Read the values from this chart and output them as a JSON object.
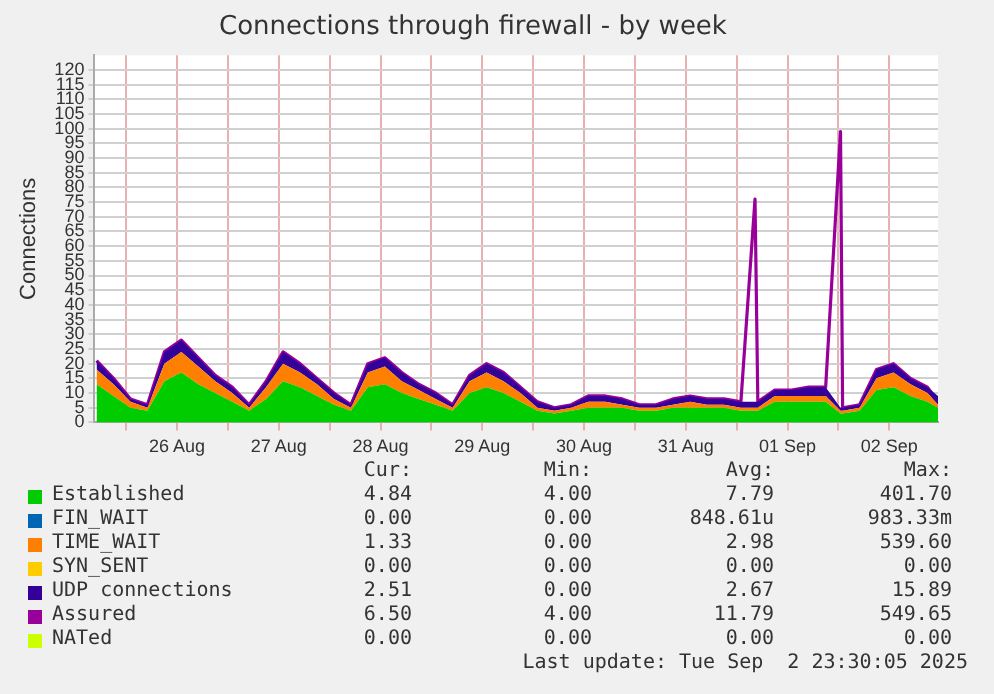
{
  "chart_data": {
    "type": "area",
    "title": "Connections through firewall - by week",
    "ylabel": "Connections",
    "stacked": true,
    "grid": true,
    "legend": "bottom",
    "marker": "none",
    "x": [
      "--08-25T17:00",
      "--08-25T21:00",
      "--08-26T01:00",
      "--08-26T05:00",
      "--08-26T09:00",
      "--08-26T13:00",
      "--08-26T17:00",
      "--08-26T21:00",
      "--08-27T01:00",
      "--08-27T05:00",
      "--08-27T09:00",
      "--08-27T13:00",
      "--08-27T17:00",
      "--08-27T21:00",
      "--08-28T01:00",
      "--08-28T05:00",
      "--08-28T09:00",
      "--08-28T13:00",
      "--08-28T17:00",
      "--08-28T21:00",
      "--08-29T01:00",
      "--08-29T05:00",
      "--08-29T09:00",
      "--08-29T13:00",
      "--08-29T17:00",
      "--08-29T21:00",
      "--08-30T01:00",
      "--08-30T05:00",
      "--08-30T09:00",
      "--08-30T13:00",
      "--08-30T17:00",
      "--08-30T21:00",
      "--08-31T01:00",
      "--08-31T05:00",
      "--08-31T09:00",
      "--08-31T13:00",
      "--08-31T17:00",
      "--08-31T21:00",
      "--09-01T01:00",
      "--09-01T04:20",
      "--09-01T05:00",
      "--09-01T09:00",
      "--09-01T13:00",
      "--09-01T17:00",
      "--09-01T21:00",
      "--09-02T00:30",
      "--09-02T01:00",
      "--09-02T05:00",
      "--09-02T09:00",
      "--09-02T13:00",
      "--09-02T17:00",
      "--09-02T21:00",
      "--09-02T23:30"
    ],
    "xlim": [
      "--08-25T16:30",
      "--09-02T23:30"
    ],
    "xticks": [
      {
        "value": "--08-26T00:00",
        "label": null
      },
      {
        "value": "--08-26T12:00",
        "label": "26 Aug"
      },
      {
        "value": "--08-27T00:00",
        "label": null
      },
      {
        "value": "--08-27T12:00",
        "label": "27 Aug"
      },
      {
        "value": "--08-28T00:00",
        "label": null
      },
      {
        "value": "--08-28T12:00",
        "label": "28 Aug"
      },
      {
        "value": "--08-29T00:00",
        "label": null
      },
      {
        "value": "--08-29T12:00",
        "label": "29 Aug"
      },
      {
        "value": "--08-30T00:00",
        "label": null
      },
      {
        "value": "--08-30T12:00",
        "label": "30 Aug"
      },
      {
        "value": "--08-31T00:00",
        "label": null
      },
      {
        "value": "--08-31T12:00",
        "label": "31 Aug"
      },
      {
        "value": "--09-01T00:00",
        "label": null
      },
      {
        "value": "--09-01T12:00",
        "label": "01 Sep"
      },
      {
        "value": "--09-02T00:00",
        "label": null
      },
      {
        "value": "--09-02T12:00",
        "label": "02 Sep"
      }
    ],
    "ylim": [
      0,
      125
    ],
    "yticks": [
      0,
      5,
      10,
      15,
      20,
      25,
      30,
      35,
      40,
      45,
      50,
      55,
      60,
      65,
      70,
      75,
      80,
      85,
      90,
      95,
      100,
      105,
      110,
      115,
      120
    ],
    "series": [
      {
        "name": "Established",
        "color": "#00cc00",
        "values": [
          13,
          9,
          5,
          4,
          14,
          17,
          13,
          10,
          7,
          4,
          8,
          14,
          12,
          9,
          6,
          4,
          12,
          13,
          10,
          8,
          6,
          4,
          10,
          12,
          10,
          7,
          4,
          3,
          4,
          5,
          5,
          5,
          4,
          4,
          5,
          5,
          5,
          5,
          4,
          4,
          4,
          7,
          7,
          7,
          7,
          3,
          3,
          4,
          11,
          12,
          9,
          7,
          5
        ]
      },
      {
        "name": "FIN_WAIT",
        "color": "#0066b3",
        "values": [
          null,
          null,
          null,
          null,
          null,
          null,
          null,
          null,
          null,
          null,
          null,
          null,
          null,
          null,
          null,
          null,
          null,
          null,
          null,
          null,
          null,
          null,
          null,
          null,
          null,
          null,
          null,
          null,
          null,
          null,
          null,
          null,
          null,
          null,
          null,
          null,
          null,
          null,
          null,
          null,
          null,
          null,
          null,
          null,
          null,
          null,
          null,
          null,
          null,
          null,
          null,
          null,
          null
        ]
      },
      {
        "name": "TIME_WAIT",
        "color": "#ff8000",
        "values": [
          5,
          4,
          2,
          1,
          6,
          7,
          6,
          4,
          3,
          1,
          4,
          6,
          5,
          4,
          2,
          1,
          5,
          6,
          4,
          3,
          2,
          1,
          4,
          5,
          4,
          3,
          1,
          1,
          1,
          2,
          2,
          1,
          1,
          1,
          1,
          2,
          1,
          1,
          1,
          1,
          1,
          2,
          2,
          2,
          2,
          1,
          1,
          1,
          4,
          5,
          4,
          3,
          1
        ]
      },
      {
        "name": "SYN_SENT",
        "color": "#ffcc00",
        "values": [
          null,
          null,
          null,
          null,
          null,
          null,
          null,
          null,
          null,
          null,
          null,
          null,
          null,
          null,
          null,
          null,
          null,
          null,
          null,
          null,
          null,
          null,
          null,
          null,
          null,
          null,
          null,
          null,
          null,
          null,
          null,
          null,
          null,
          null,
          null,
          null,
          null,
          null,
          null,
          null,
          null,
          null,
          null,
          null,
          null,
          null,
          null,
          null,
          null,
          null,
          null,
          null,
          null
        ]
      },
      {
        "name": "UDP connections",
        "color": "#330099",
        "values": [
          3,
          2,
          1,
          1,
          4,
          4,
          3,
          2,
          2,
          1,
          2,
          4,
          3,
          2,
          2,
          1,
          3,
          3,
          3,
          2,
          2,
          1,
          2,
          3,
          3,
          2,
          2,
          1,
          1,
          2,
          2,
          2,
          1,
          1,
          2,
          2,
          2,
          2,
          2,
          2,
          2,
          2,
          2,
          3,
          3,
          1,
          1,
          1,
          3,
          3,
          2,
          2,
          3
        ]
      },
      {
        "name": "Assured",
        "color": "#990099",
        "type": "line",
        "values": [
          21,
          15,
          8,
          6,
          24,
          28,
          22,
          16,
          12,
          6,
          14,
          24,
          20,
          15,
          10,
          6,
          20,
          22,
          17,
          13,
          10,
          6,
          16,
          20,
          17,
          12,
          7,
          5,
          6,
          9,
          9,
          8,
          6,
          6,
          8,
          9,
          8,
          8,
          7,
          76,
          7,
          11,
          11,
          12,
          12,
          99,
          5,
          6,
          18,
          20,
          15,
          12,
          7
        ]
      },
      {
        "name": "NATed",
        "color": "#ccff00",
        "type": "line",
        "values": [
          null,
          null,
          null,
          null,
          null,
          null,
          null,
          null,
          null,
          null,
          null,
          null,
          null,
          null,
          null,
          null,
          null,
          null,
          null,
          null,
          null,
          null,
          null,
          null,
          null,
          null,
          null,
          null,
          null,
          null,
          null,
          null,
          null,
          null,
          null,
          null,
          null,
          null,
          null,
          null,
          null,
          null,
          null,
          null,
          null,
          null,
          null,
          null,
          null,
          null,
          null,
          null,
          null
        ]
      }
    ],
    "annotations": [
      "Cur:",
      "Min:",
      "Avg:",
      "Max:",
      "4.84",
      "4.00",
      "7.79",
      "401.70",
      "0.00",
      "0.00",
      "848.61u",
      "983.33m",
      "1.33",
      "0.00",
      "2.98",
      "539.60",
      "0.00",
      "0.00",
      "0.00",
      "0.00",
      "2.51",
      "0.00",
      "2.67",
      "15.89",
      "6.50",
      "4.00",
      "11.79",
      "549.65",
      "0.00",
      "0.00",
      "0.00",
      "0.00",
      "Last update: Tue Sep  2 23:30:05 2025"
    ]
  }
}
